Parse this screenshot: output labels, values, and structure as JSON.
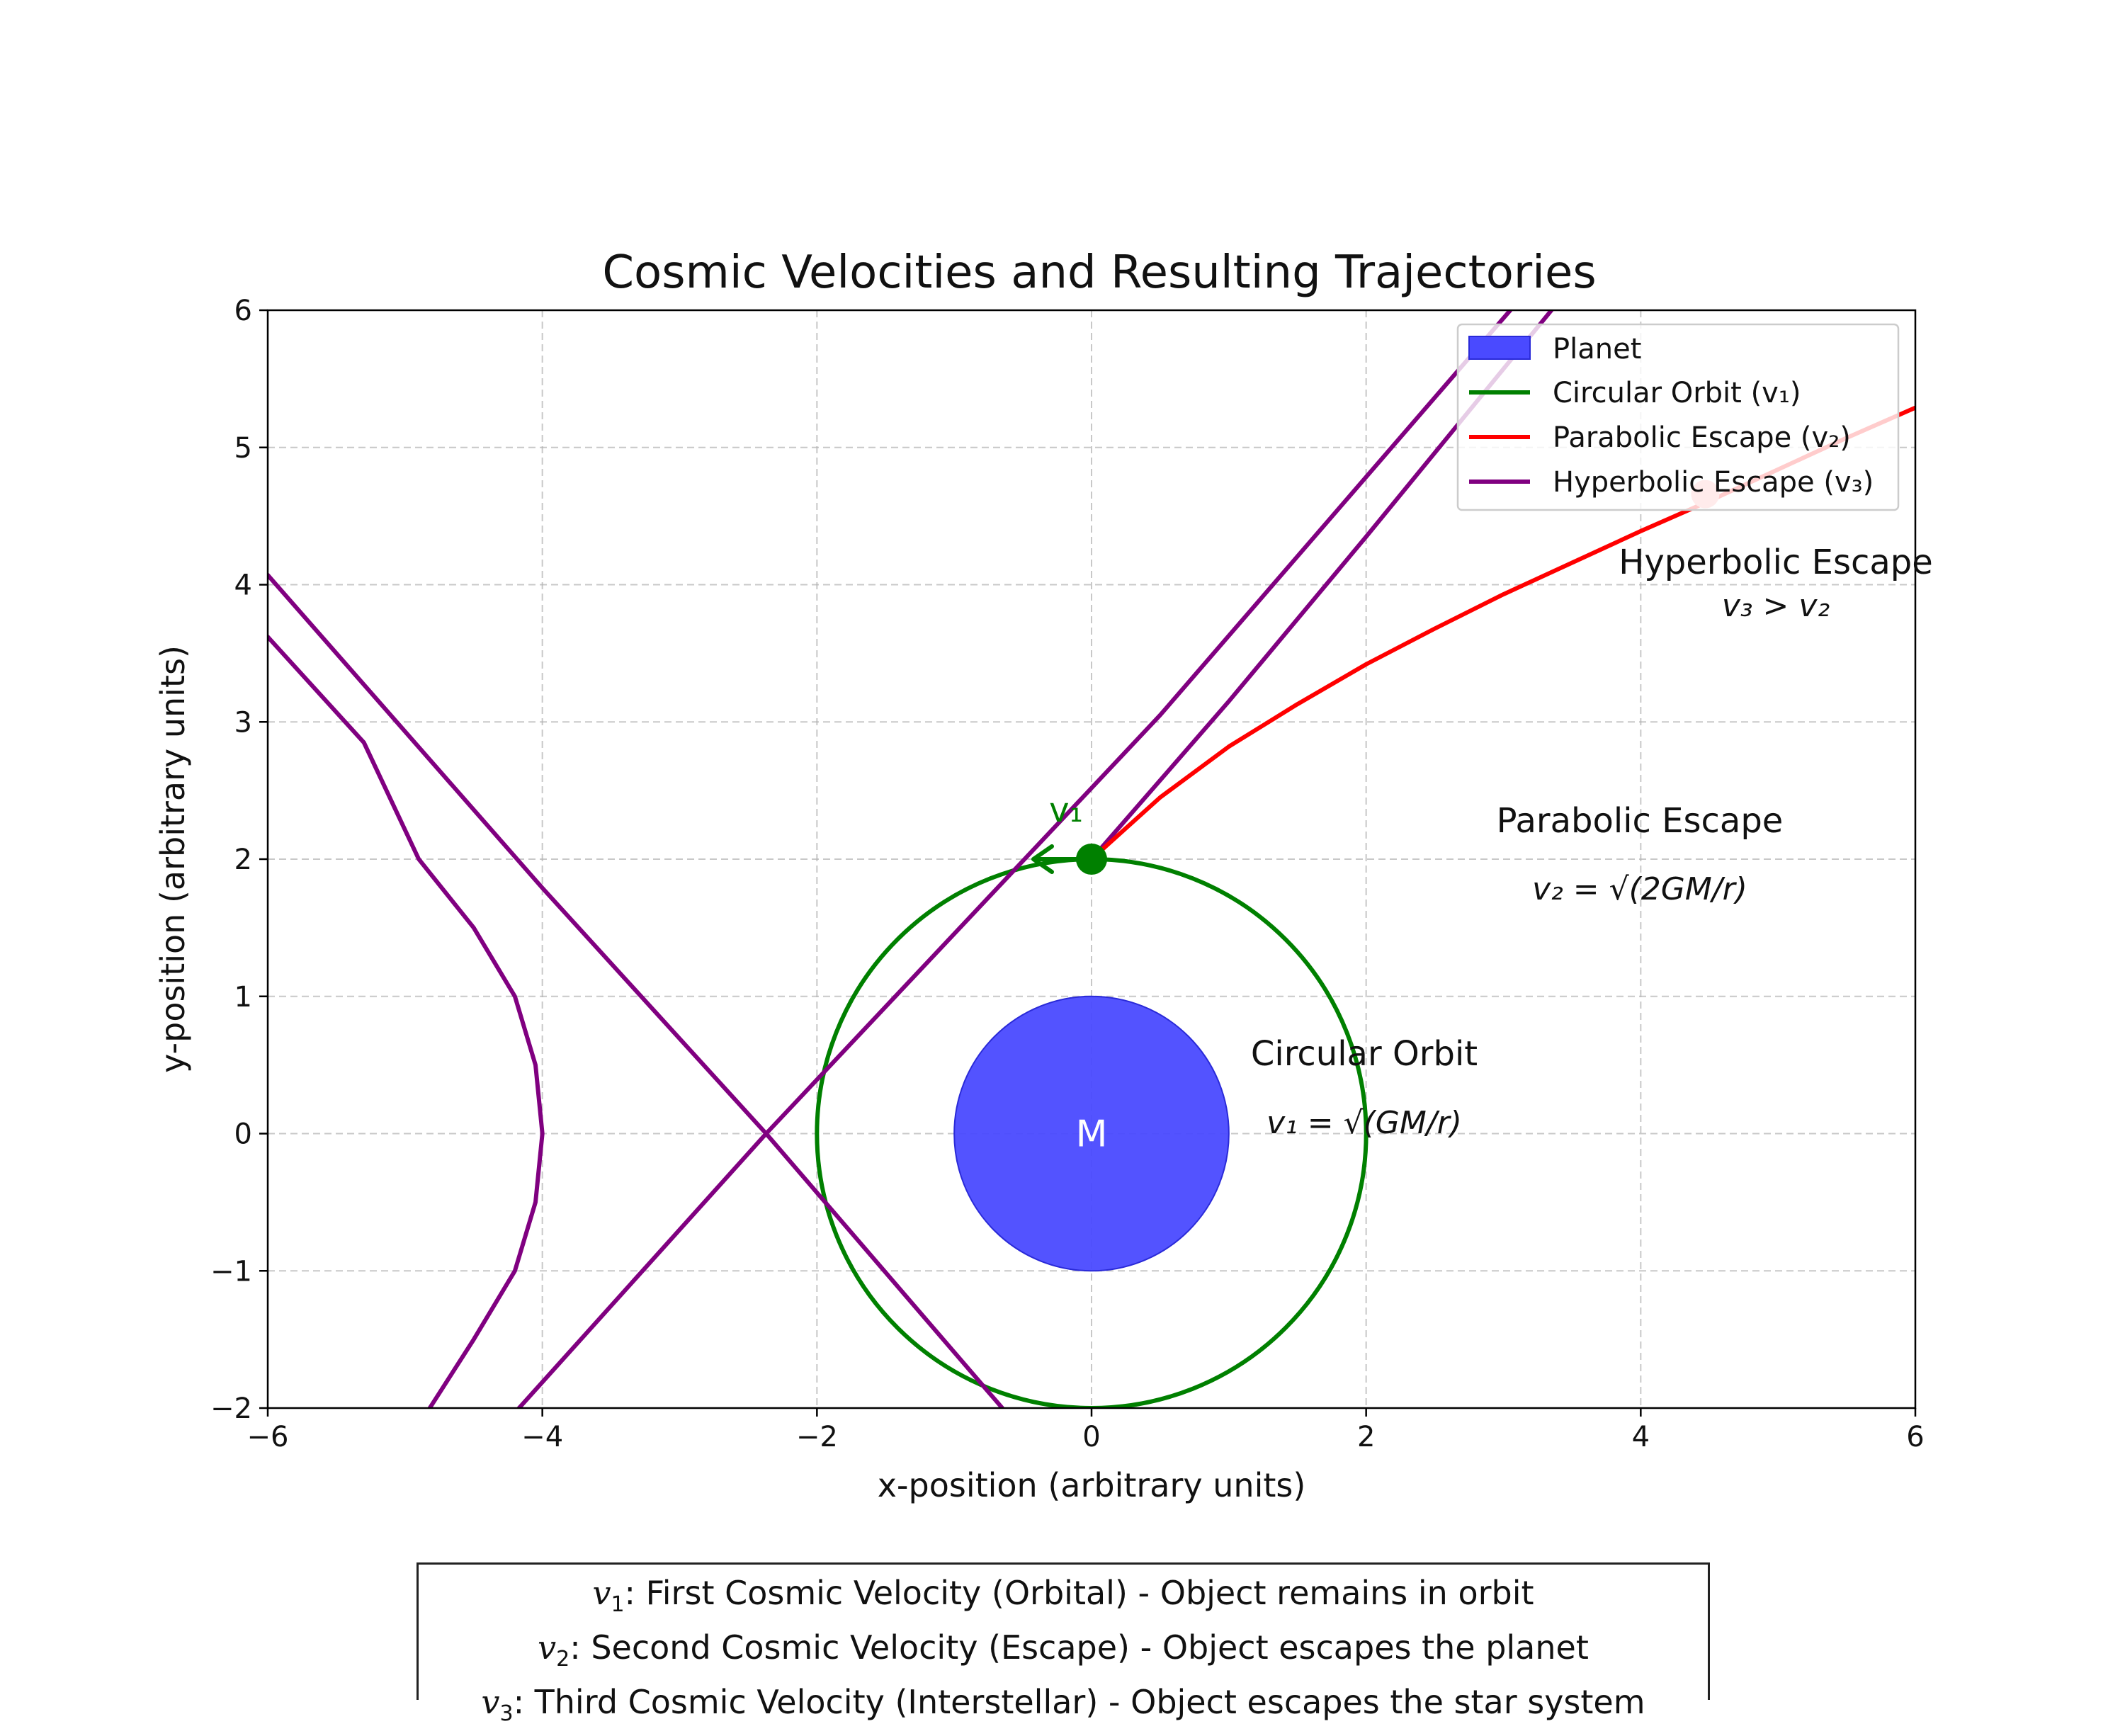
{
  "chart_data": {
    "type": "line",
    "title": "Cosmic Velocities and Resulting Trajectories",
    "xlabel": "x-position (arbitrary units)",
    "ylabel": "y-position (arbitrary units)",
    "xlim": [
      -6,
      6
    ],
    "ylim": [
      -2,
      6
    ],
    "xticks": [
      -6,
      -4,
      -2,
      0,
      2,
      4,
      6
    ],
    "yticks": [
      -2,
      -1,
      0,
      1,
      2,
      3,
      4,
      5,
      6
    ],
    "xtick_labels": [
      "−6",
      "−4",
      "−2",
      "0",
      "2",
      "4",
      "6"
    ],
    "ytick_labels": [
      "−2",
      "−1",
      "0",
      "1",
      "2",
      "3",
      "4",
      "5",
      "6"
    ],
    "grid": true,
    "legend_position": "top-right",
    "legend": [
      {
        "label": "Planet",
        "color": "#4a4aff",
        "kind": "patch"
      },
      {
        "label": "Circular Orbit (v₁)",
        "color": "#008000",
        "kind": "line"
      },
      {
        "label": "Parabolic Escape (v₂)",
        "color": "#ff0000",
        "kind": "line"
      },
      {
        "label": "Hyperbolic Escape (v₃)",
        "color": "#800080",
        "kind": "line"
      }
    ],
    "planet": {
      "center": [
        0,
        0
      ],
      "radius": 1,
      "label": "M",
      "color": "#4a4aff"
    },
    "circular_orbit": {
      "center": [
        0,
        0
      ],
      "radius": 2,
      "color": "#008000"
    },
    "parabolic_escape": {
      "color": "#ff0000",
      "points": [
        [
          0,
          2
        ],
        [
          0.5,
          2.45
        ],
        [
          1,
          2.82
        ],
        [
          1.5,
          3.13
        ],
        [
          2,
          3.42
        ],
        [
          2.5,
          3.68
        ],
        [
          3,
          3.93
        ],
        [
          3.5,
          4.16
        ],
        [
          4,
          4.39
        ],
        [
          4.5,
          4.61
        ],
        [
          5,
          4.84
        ],
        [
          5.5,
          5.07
        ],
        [
          6,
          5.29
        ]
      ]
    },
    "hyperbolic_escape": {
      "color": "#800080",
      "center": [
        -4,
        0
      ],
      "a": 0,
      "branches": [
        {
          "name": "",
          "points": [
            [
              -4.82,
              -2
            ],
            [
              -4.5,
              -1.5
            ],
            [
              -4.2,
              -1
            ],
            [
              -4.05,
              -0.5
            ],
            [
              -4,
              0
            ],
            [
              -4.05,
              0.5
            ],
            [
              -4.2,
              1
            ],
            [
              -4.5,
              1.5
            ],
            [
              -4.9,
              2
            ],
            [
              -5.3,
              2.85
            ],
            [
              -6,
              3.62
            ]
          ]
        },
        {
          "name": "",
          "points": [
            [
              -6,
              4.07
            ],
            [
              -4,
              1.79
            ],
            [
              -2.37,
              0
            ],
            [
              -0.65,
              -2
            ]
          ]
        },
        {
          "name": "",
          "points": [
            [
              -4.17,
              -2
            ],
            [
              -2.37,
              0
            ],
            [
              0.5,
              3.05
            ],
            [
              3.05,
              6
            ]
          ]
        },
        {
          "name": "",
          "points": [
            [
              0,
              2
            ],
            [
              1,
              3.15
            ],
            [
              2,
              4.35
            ],
            [
              3.35,
              6
            ]
          ]
        }
      ]
    },
    "launch_point": {
      "x": 0,
      "y": 2,
      "color": "#008000"
    },
    "secondary_point": {
      "x": 4.47,
      "y": 4.66
    },
    "annotations": [
      {
        "id": "v1",
        "text": "v₁",
        "x": -0.12,
        "y": 2.35
      },
      {
        "id": "circular",
        "line1": "Circular Orbit",
        "line2": "v₁ = √(GM/r)",
        "x": 2,
        "y": 0.4
      },
      {
        "id": "parabolic",
        "line1": "Parabolic Escape",
        "line2": "v₂ = √(2GM/r)",
        "x": 4,
        "y": 2.15
      },
      {
        "id": "hyperbolic",
        "line1": "Hyperbolic Escape",
        "line2": "v₃ > v₂",
        "x": 5,
        "y": 4.15
      }
    ]
  },
  "info_box": {
    "line1_var": "v",
    "line1_sub": "1",
    "line1_text": ": First Cosmic Velocity (Orbital) - Object remains in orbit",
    "line2_var": "v",
    "line2_sub": "2",
    "line2_text": ": Second Cosmic Velocity (Escape) - Object escapes the planet",
    "line3_var": "v",
    "line3_sub": "3",
    "line3_text": ": Third Cosmic Velocity (Interstellar) - Object escapes the star system"
  }
}
